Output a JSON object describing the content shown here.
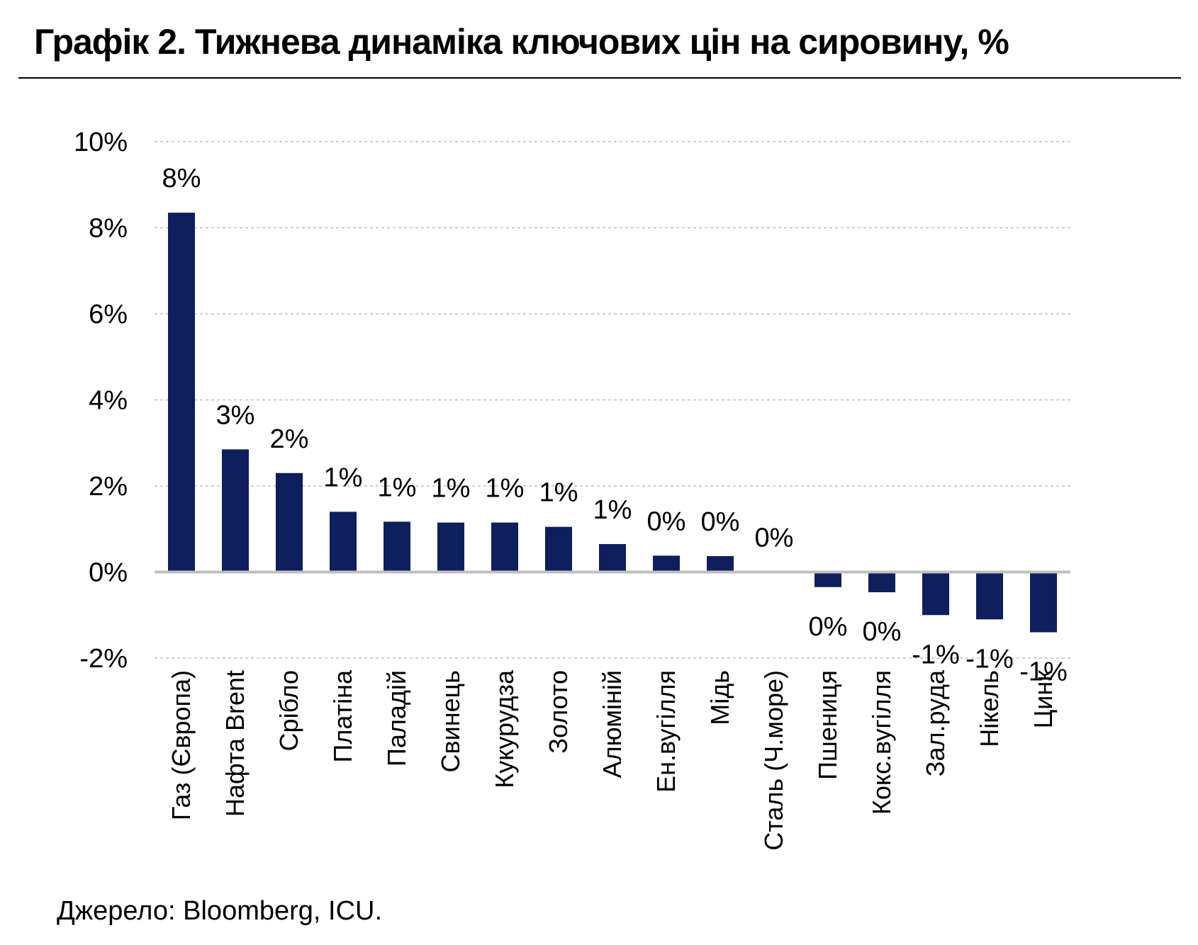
{
  "title": "Графік 2. Тижнева динаміка ключових цін на сировину, %",
  "source": "Джерело: Bloomberg, ICU.",
  "colors": {
    "bar": "#0d1f5c",
    "grid": "#bfbfbf",
    "zero": "#bfbfbf"
  },
  "chart_data": {
    "type": "bar",
    "title": "Графік 2. Тижнева динаміка ключових цін на сировину, %",
    "xlabel": "",
    "ylabel": "",
    "ylim": [
      -2,
      10
    ],
    "yticks": [
      -2,
      0,
      2,
      4,
      6,
      8,
      10
    ],
    "ytick_labels": [
      "-2%",
      "0%",
      "2%",
      "4%",
      "6%",
      "8%",
      "10%"
    ],
    "grid": true,
    "legend": "none",
    "categories": [
      "Газ (Європа)",
      "Нафта Brent",
      "Срібло",
      "Платіна",
      "Паладій",
      "Свинець",
      "Кукурудза",
      "Золото",
      "Алюміній",
      "Ен.вугілля",
      "Мідь",
      "Сталь (Ч.море)",
      "Пшениця",
      "Кокс.вугілля",
      "Зал.руда",
      "Нікель",
      "Цинк"
    ],
    "values": [
      8.35,
      2.85,
      2.3,
      1.4,
      1.17,
      1.15,
      1.15,
      1.05,
      0.65,
      0.38,
      0.37,
      0.0,
      -0.35,
      -0.47,
      -1.0,
      -1.1,
      -1.4
    ],
    "data_labels": [
      "8%",
      "3%",
      "2%",
      "1%",
      "1%",
      "1%",
      "1%",
      "1%",
      "1%",
      "0%",
      "0%",
      "0%",
      "0%",
      "0%",
      "-1%",
      "-1%",
      "-1%"
    ]
  }
}
